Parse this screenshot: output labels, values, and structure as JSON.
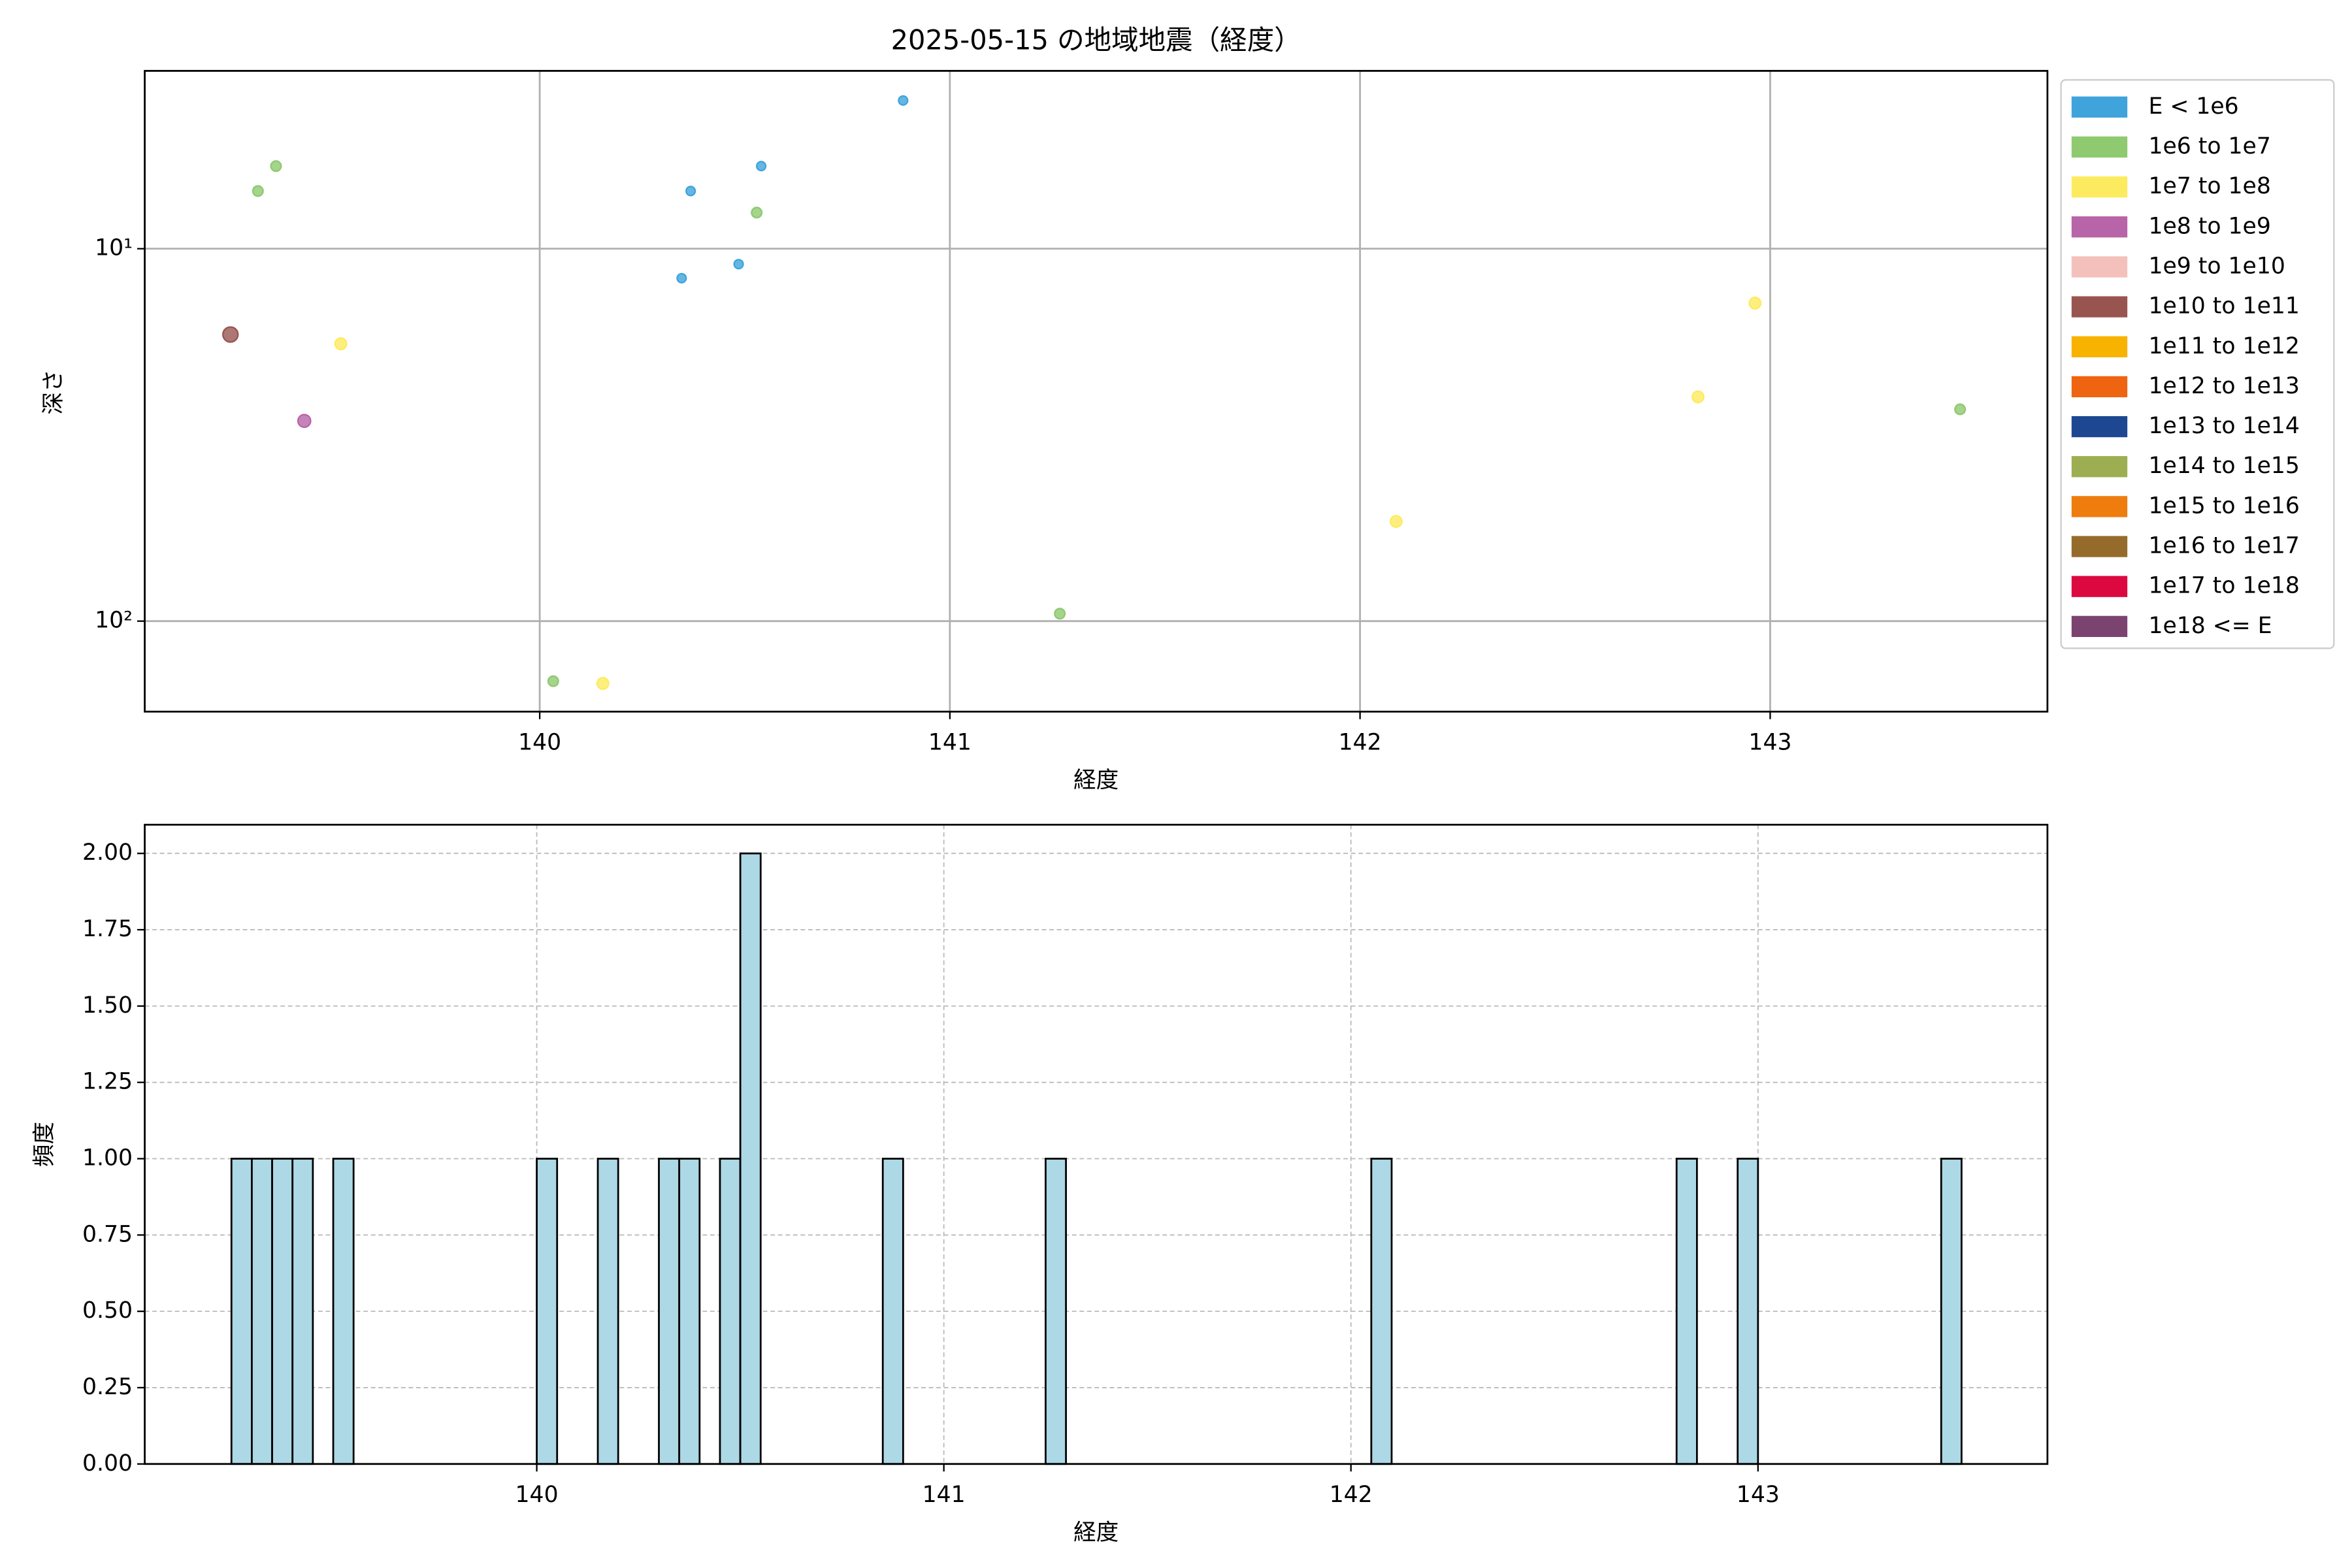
{
  "chart_data": [
    {
      "type": "scatter",
      "title": "2025-05-15 の地域地震（経度）",
      "xlabel": "経度",
      "ylabel": "深さ",
      "xlim": [
        139.037,
        143.676
      ],
      "xticks": [
        140,
        141,
        142,
        143
      ],
      "ylim": [
        3.33,
        175
      ],
      "yscale": "log",
      "y_inverted": true,
      "yticks": [
        {
          "value": 10,
          "label": "10¹"
        },
        {
          "value": 100,
          "label": "10²"
        }
      ],
      "grid": true,
      "legend": "outside upper right",
      "series": [
        {
          "name": "E < 1e6",
          "color": "#3fa4dc",
          "x": [
            140.346,
            140.368,
            140.485,
            140.54,
            140.886
          ],
          "y": [
            12,
            7,
            11,
            6,
            4
          ]
        },
        {
          "name": "1e6 to 1e7",
          "color": "#8fc970",
          "x": [
            139.313,
            139.357,
            140.033,
            140.529,
            141.268,
            143.463
          ],
          "y": [
            7,
            6,
            145,
            8,
            95.5,
            27
          ]
        },
        {
          "name": "1e7 to 1e8",
          "color": "#fdeb5f",
          "x": [
            139.515,
            140.154,
            142.088,
            142.824,
            142.963
          ],
          "y": [
            18,
            147,
            54,
            25,
            14
          ]
        },
        {
          "name": "1e8 to 1e9",
          "color": "#b864a8",
          "x": [
            139.426
          ],
          "y": [
            29
          ]
        },
        {
          "name": "1e9 to 1e10",
          "color": "#f4c0bb",
          "x": [],
          "y": []
        },
        {
          "name": "1e10 to 1e11",
          "color": "#985550",
          "x": [
            139.246
          ],
          "y": [
            17
          ]
        },
        {
          "name": "1e11 to 1e12",
          "color": "#f8b200",
          "x": [],
          "y": []
        },
        {
          "name": "1e12 to 1e13",
          "color": "#ef6410",
          "x": [],
          "y": []
        },
        {
          "name": "1e13 to 1e14",
          "color": "#1d4891",
          "x": [],
          "y": []
        },
        {
          "name": "1e14 to 1e15",
          "color": "#9cae51",
          "x": [],
          "y": []
        },
        {
          "name": "1e15 to 1e16",
          "color": "#ef7d0e",
          "x": [],
          "y": []
        },
        {
          "name": "1e16 to 1e17",
          "color": "#956b2c",
          "x": [],
          "y": []
        },
        {
          "name": "1e17 to 1e18",
          "color": "#dc0840",
          "x": [],
          "y": []
        },
        {
          "name": "1e18 <= E",
          "color": "#7b4370",
          "x": [],
          "y": []
        }
      ]
    },
    {
      "type": "histogram",
      "xlabel": "経度",
      "ylabel": "頻度",
      "xlim": [
        139.037,
        143.711
      ],
      "xticks": [
        140,
        141,
        142,
        143
      ],
      "ylim": [
        0,
        2.094
      ],
      "yticks": [
        {
          "value": 0,
          "label": "0.00"
        },
        {
          "value": 0.25,
          "label": "0.25"
        },
        {
          "value": 0.5,
          "label": "0.50"
        },
        {
          "value": 0.75,
          "label": "0.75"
        },
        {
          "value": 1,
          "label": "1.00"
        },
        {
          "value": 1.25,
          "label": "1.25"
        },
        {
          "value": 1.5,
          "label": "1.50"
        },
        {
          "value": 1.75,
          "label": "1.75"
        },
        {
          "value": 2,
          "label": "2.00"
        }
      ],
      "grid": true,
      "color": "#add8e6",
      "edgecolor": "#000000",
      "bins": [
        139.25,
        139.3,
        139.35,
        139.4,
        139.45,
        139.5,
        139.55,
        139.6,
        139.65,
        139.7,
        139.75,
        139.8,
        139.85,
        139.9,
        139.95,
        140.0,
        140.05,
        140.1,
        140.15,
        140.2,
        140.25,
        140.3,
        140.35,
        140.4,
        140.45,
        140.5,
        140.55,
        140.6,
        140.65,
        140.7,
        140.75,
        140.8,
        140.85,
        140.9,
        140.95,
        141.0,
        141.05,
        141.1,
        141.15,
        141.2,
        141.25,
        141.3,
        141.35,
        141.4,
        141.45,
        141.5,
        141.55,
        141.6,
        141.65,
        141.7,
        141.75,
        141.8,
        141.85,
        141.9,
        141.95,
        142.0,
        142.05,
        142.1,
        142.15,
        142.2,
        142.25,
        142.3,
        142.35,
        142.4,
        142.45,
        142.5,
        142.55,
        142.6,
        142.65,
        142.7,
        142.75,
        142.8,
        142.85,
        142.9,
        142.95,
        143.0,
        143.05,
        143.1,
        143.15,
        143.2,
        143.25,
        143.3,
        143.35,
        143.4,
        143.45,
        143.5
      ],
      "values": [
        1,
        1,
        1,
        1,
        0,
        1,
        0,
        0,
        0,
        0,
        0,
        0,
        0,
        0,
        0,
        1,
        0,
        0,
        1,
        0,
        0,
        1,
        1,
        0,
        1,
        2,
        0,
        0,
        0,
        0,
        0,
        0,
        1,
        0,
        0,
        0,
        0,
        0,
        0,
        0,
        1,
        0,
        0,
        0,
        0,
        0,
        0,
        0,
        0,
        0,
        0,
        0,
        0,
        0,
        0,
        0,
        1,
        0,
        0,
        0,
        0,
        0,
        0,
        0,
        0,
        0,
        0,
        0,
        0,
        0,
        0,
        1,
        0,
        0,
        1,
        0,
        0,
        0,
        0,
        0,
        0,
        0,
        0,
        0,
        1
      ]
    }
  ]
}
